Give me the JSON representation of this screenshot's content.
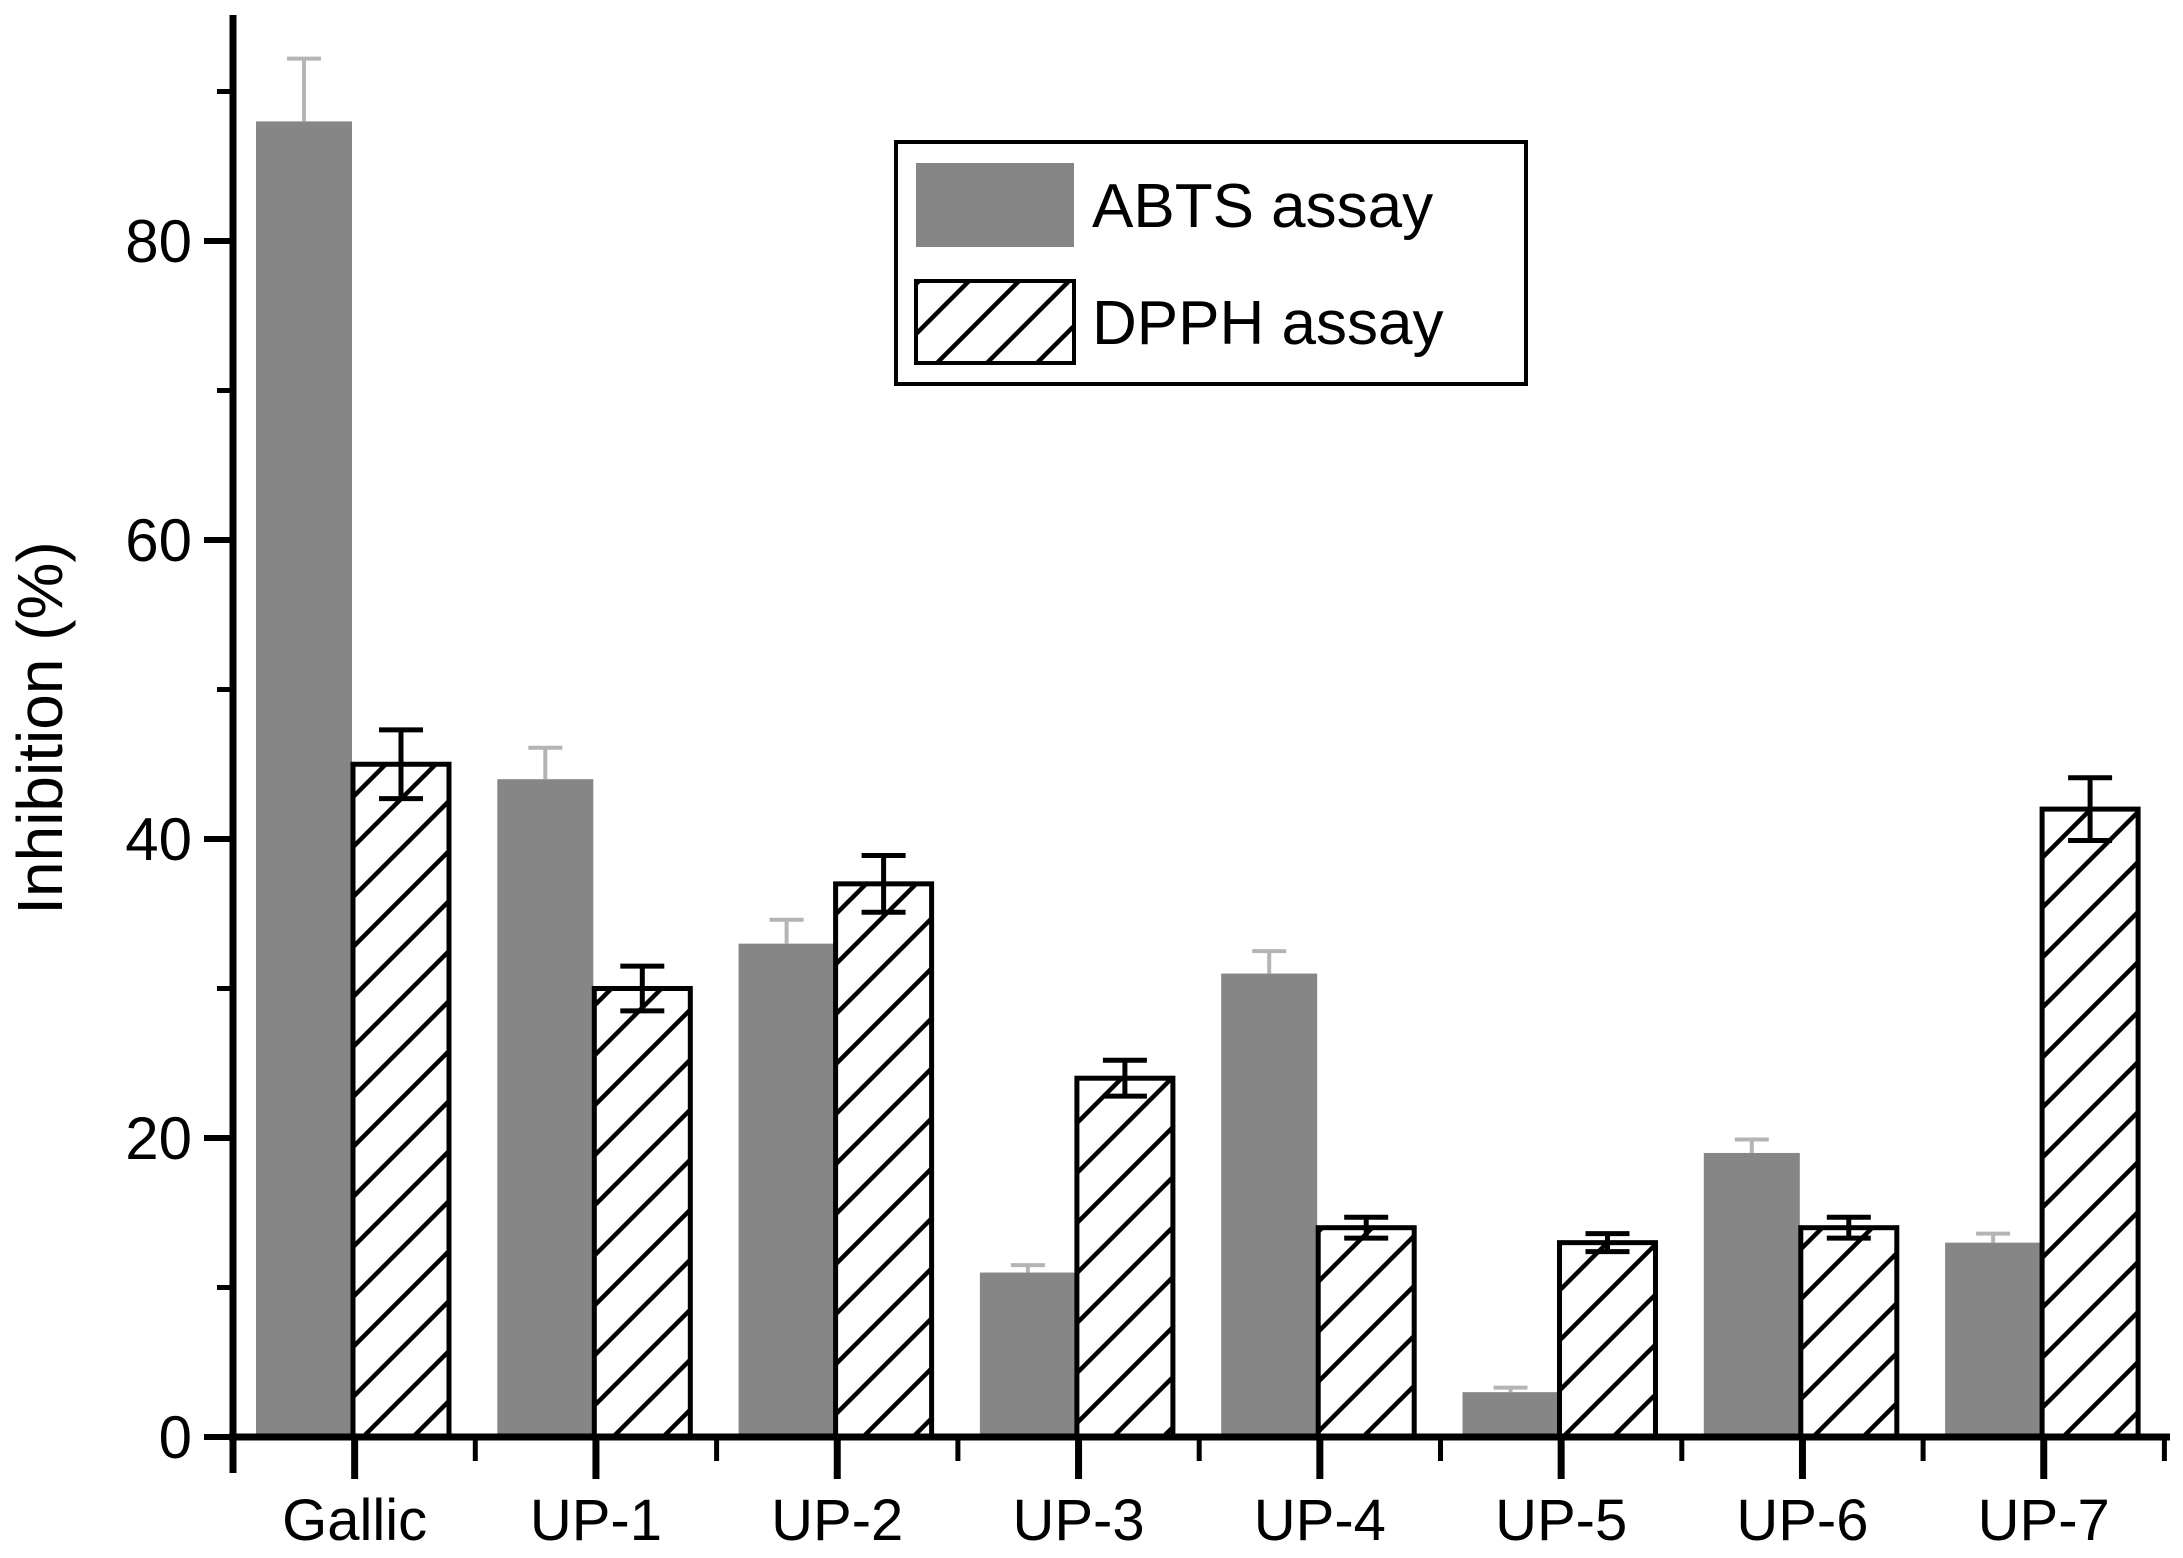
{
  "chart_data": {
    "type": "bar",
    "title": "",
    "xlabel": "",
    "ylabel": "Inhibition (%)",
    "categories": [
      "Gallic",
      "UP-1",
      "UP-2",
      "UP-3",
      "UP-4",
      "UP-5",
      "UP-6",
      "UP-7"
    ],
    "series": [
      {
        "name": "ABTS assay",
        "style": "solid",
        "fill_color": "#868686",
        "error_color": "#b4b4b4",
        "values": [
          88,
          44,
          33,
          11,
          31,
          3,
          19,
          13
        ],
        "errors": [
          4.2,
          2.1,
          1.6,
          0.5,
          1.5,
          0.3,
          0.9,
          0.6
        ]
      },
      {
        "name": "DPPH assay",
        "style": "hatched",
        "fill_color": "#ffffff",
        "hatch_color": "#000000",
        "error_color": "#000000",
        "values": [
          45,
          30,
          37,
          24,
          14,
          13,
          14,
          42
        ],
        "errors": [
          2.3,
          1.5,
          1.9,
          1.2,
          0.7,
          0.6,
          0.7,
          2.1
        ]
      }
    ],
    "ylim": [
      0,
      95
    ],
    "yticks_major": [
      0,
      20,
      40,
      60,
      80
    ],
    "yticks_minor": [
      10,
      30,
      50,
      70,
      90
    ],
    "ytick_labels": [
      "0",
      "20",
      "40",
      "60",
      "80"
    ],
    "grid": false,
    "legend_position": "upper-center",
    "axis_color": "#000000"
  },
  "legend": {
    "items": [
      {
        "label": "ABTS assay",
        "swatch": "solid-gray-swatch"
      },
      {
        "label": "DPPH assay",
        "swatch": "diagonal-hatch-swatch"
      }
    ]
  }
}
